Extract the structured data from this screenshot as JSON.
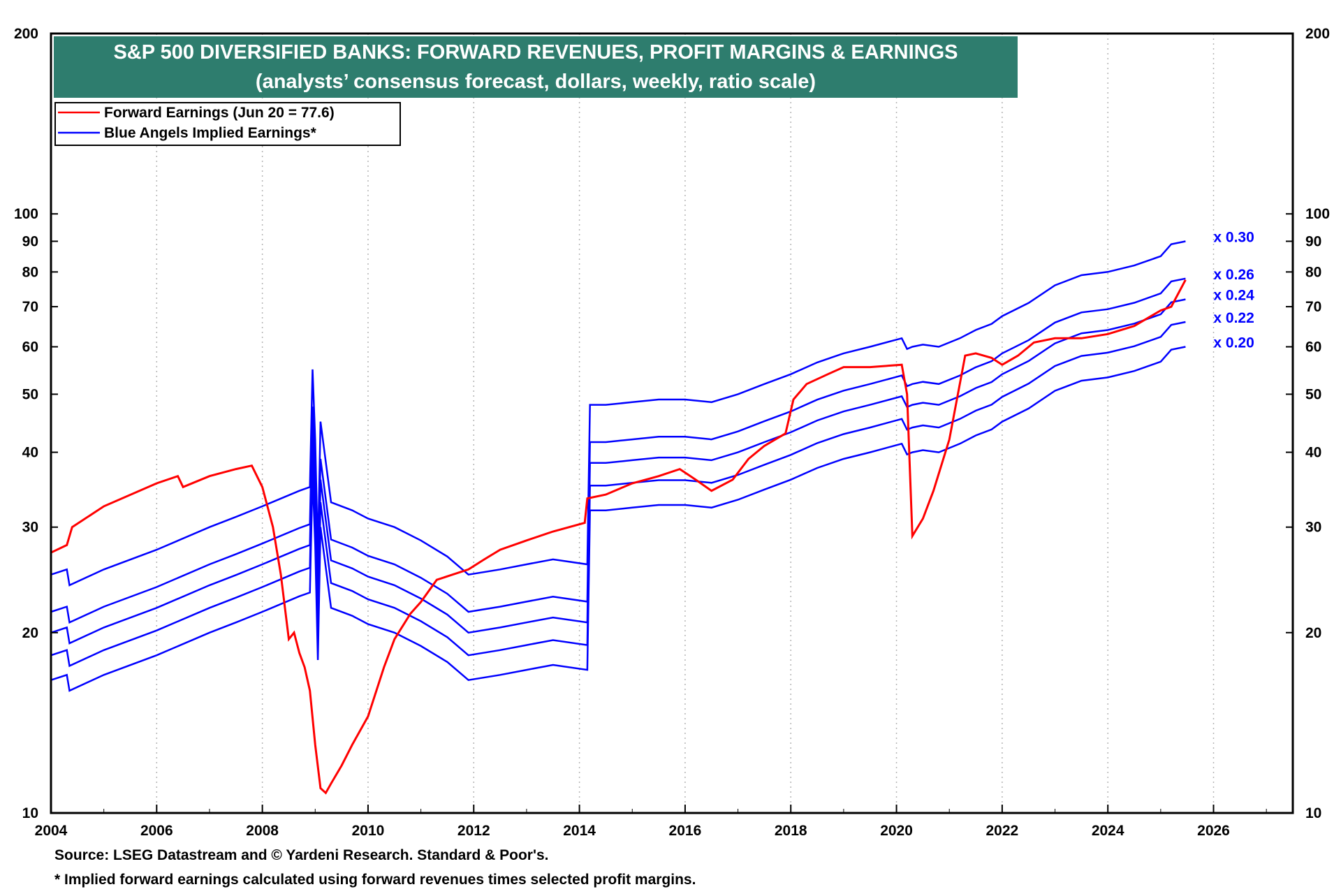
{
  "title": "S&P 500 DIVERSIFIED BANKS: FORWARD REVENUES, PROFIT MARGINS & EARNINGS",
  "subtitle": "(analysts’ consensus forecast, dollars, weekly, ratio scale)",
  "title_box_color": "#2e7d6e",
  "legend": [
    {
      "label": "Forward Earnings (Jun 20 = 77.6)",
      "color": "#ff0000"
    },
    {
      "label": "Blue Angels Implied Earnings*",
      "color": "#0000ff"
    }
  ],
  "source": "Source: LSEG Datastream and © Yardeni Research. Standard & Poor's.",
  "footnote": "* Implied forward earnings calculated using forward revenues times selected profit margins.",
  "chart_data": {
    "type": "line",
    "scale": "log",
    "ylim": [
      10,
      200
    ],
    "xlim": [
      2004,
      2027.5
    ],
    "yticks": [
      {
        "value": 10,
        "label": "10"
      },
      {
        "value": 20,
        "label": "20"
      },
      {
        "value": 30,
        "label": "30"
      },
      {
        "value": 40,
        "label": "40"
      },
      {
        "value": 50,
        "label": "50"
      },
      {
        "value": 60,
        "label": "60"
      },
      {
        "value": 70,
        "label": "70"
      },
      {
        "value": 80,
        "label": "80"
      },
      {
        "value": 90,
        "label": "90"
      },
      {
        "value": 100,
        "label": "100"
      },
      {
        "value": 200,
        "label": "200"
      }
    ],
    "xticks": [
      "2004",
      "2006",
      "2008",
      "2010",
      "2012",
      "2014",
      "2016",
      "2018",
      "2020",
      "2022",
      "2024",
      "2026"
    ],
    "grid": true,
    "legend_position": "top-left",
    "forward_earnings": {
      "name": "Forward Earnings (Jun 20 = 77.6)",
      "color": "#ff0000",
      "x": [
        2004.0,
        2004.3,
        2004.4,
        2005.0,
        2006.0,
        2006.4,
        2006.5,
        2007.0,
        2007.5,
        2007.8,
        2008.0,
        2008.2,
        2008.35,
        2008.5,
        2008.6,
        2008.7,
        2008.8,
        2008.9,
        2009.0,
        2009.1,
        2009.2,
        2009.3,
        2009.5,
        2009.7,
        2010.0,
        2010.3,
        2010.5,
        2010.8,
        2011.0,
        2011.3,
        2011.6,
        2011.9,
        2012.2,
        2012.5,
        2013.0,
        2013.5,
        2014.1,
        2014.15,
        2014.5,
        2015.0,
        2015.5,
        2015.9,
        2016.2,
        2016.5,
        2016.9,
        2017.2,
        2017.5,
        2017.9,
        2018.05,
        2018.3,
        2018.7,
        2019.0,
        2019.5,
        2020.1,
        2020.2,
        2020.3,
        2020.5,
        2020.7,
        2021.0,
        2021.3,
        2021.5,
        2021.8,
        2022.0,
        2022.3,
        2022.6,
        2023.0,
        2023.5,
        2024.0,
        2024.5,
        2025.0,
        2025.2,
        2025.47
      ],
      "values": [
        27.2,
        28.0,
        30.0,
        32.5,
        35.5,
        36.5,
        35.0,
        36.5,
        37.5,
        38.0,
        35.0,
        30.0,
        25.0,
        19.5,
        20.0,
        18.5,
        17.5,
        16.0,
        13.0,
        11.0,
        10.8,
        11.2,
        12.0,
        13.0,
        14.5,
        17.5,
        19.5,
        21.5,
        22.5,
        24.5,
        25.0,
        25.5,
        26.5,
        27.5,
        28.5,
        29.5,
        30.5,
        33.5,
        34.0,
        35.5,
        36.5,
        37.5,
        36.0,
        34.5,
        36.0,
        39.0,
        41.0,
        43.0,
        49.0,
        52.0,
        54.0,
        55.5,
        55.5,
        56.0,
        50.0,
        29.0,
        31.0,
        34.5,
        42.0,
        58.0,
        58.5,
        57.5,
        56.0,
        58.0,
        61.0,
        62.0,
        62.0,
        63.0,
        65.0,
        69.0,
        70.0,
        77.6
      ]
    },
    "implied_earnings": {
      "name": "Blue Angels Implied Earnings*",
      "color": "#0000ff",
      "base_multiplier": 0.3,
      "x": [
        2004.0,
        2004.3,
        2004.35,
        2005.0,
        2006.0,
        2007.0,
        2007.5,
        2008.0,
        2008.7,
        2008.9,
        2008.95,
        2009.0,
        2009.05,
        2009.1,
        2009.3,
        2009.7,
        2010.0,
        2010.5,
        2011.0,
        2011.5,
        2011.9,
        2012.5,
        2013.0,
        2013.5,
        2014.15,
        2014.2,
        2014.5,
        2015.0,
        2015.5,
        2016.0,
        2016.5,
        2017.0,
        2017.5,
        2018.0,
        2018.5,
        2019.0,
        2019.5,
        2020.1,
        2020.2,
        2020.3,
        2020.5,
        2020.8,
        2021.2,
        2021.5,
        2021.8,
        2022.0,
        2022.5,
        2023.0,
        2023.5,
        2024.0,
        2024.5,
        2025.0,
        2025.2,
        2025.47
      ],
      "values": [
        25.0,
        25.5,
        24.0,
        25.5,
        27.5,
        30.0,
        31.2,
        32.5,
        34.5,
        35.0,
        55.0,
        42.0,
        27.0,
        45.0,
        33.0,
        32.0,
        31.0,
        30.0,
        28.5,
        26.8,
        25.0,
        25.5,
        26.0,
        26.5,
        26.0,
        48.0,
        48.0,
        48.5,
        49.0,
        49.0,
        48.5,
        50.0,
        52.0,
        54.0,
        56.5,
        58.5,
        60.0,
        62.0,
        59.5,
        60.0,
        60.5,
        60.0,
        62.0,
        64.0,
        65.5,
        67.5,
        71.0,
        76.0,
        79.0,
        80.0,
        82.0,
        85.0,
        89.0,
        90.0
      ]
    },
    "multipliers": [
      {
        "label": "x 0.30",
        "value": 0.3
      },
      {
        "label": "x 0.26",
        "value": 0.26
      },
      {
        "label": "x 0.24",
        "value": 0.24
      },
      {
        "label": "x 0.22",
        "value": 0.22
      },
      {
        "label": "x 0.20",
        "value": 0.2
      }
    ]
  }
}
